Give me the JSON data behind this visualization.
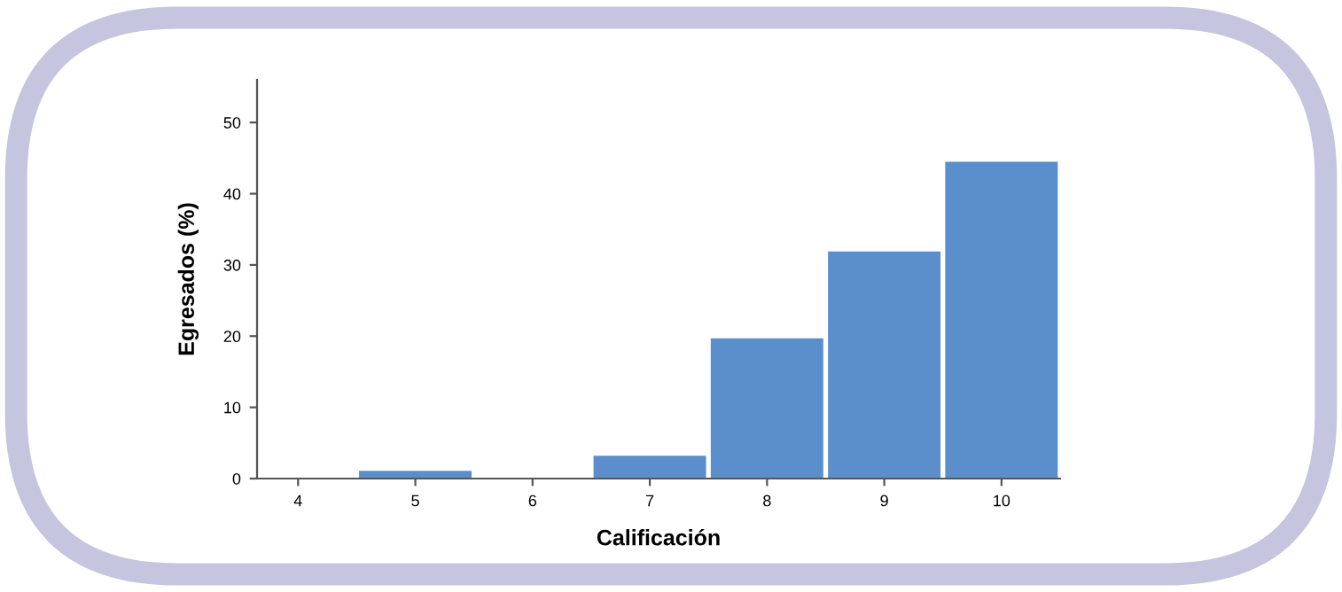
{
  "chart_data": {
    "type": "bar",
    "xlabel": "Calificación",
    "ylabel": "Egresados (%)",
    "categories": [
      "4",
      "5",
      "6",
      "7",
      "8",
      "9",
      "10"
    ],
    "values": [
      0,
      1.1,
      0,
      3.2,
      19.7,
      31.9,
      44.5
    ],
    "color": "#5b8fcc",
    "ylim": [
      0,
      56
    ],
    "yticks": [
      0,
      10,
      20,
      30,
      40,
      50
    ],
    "grid": false
  }
}
